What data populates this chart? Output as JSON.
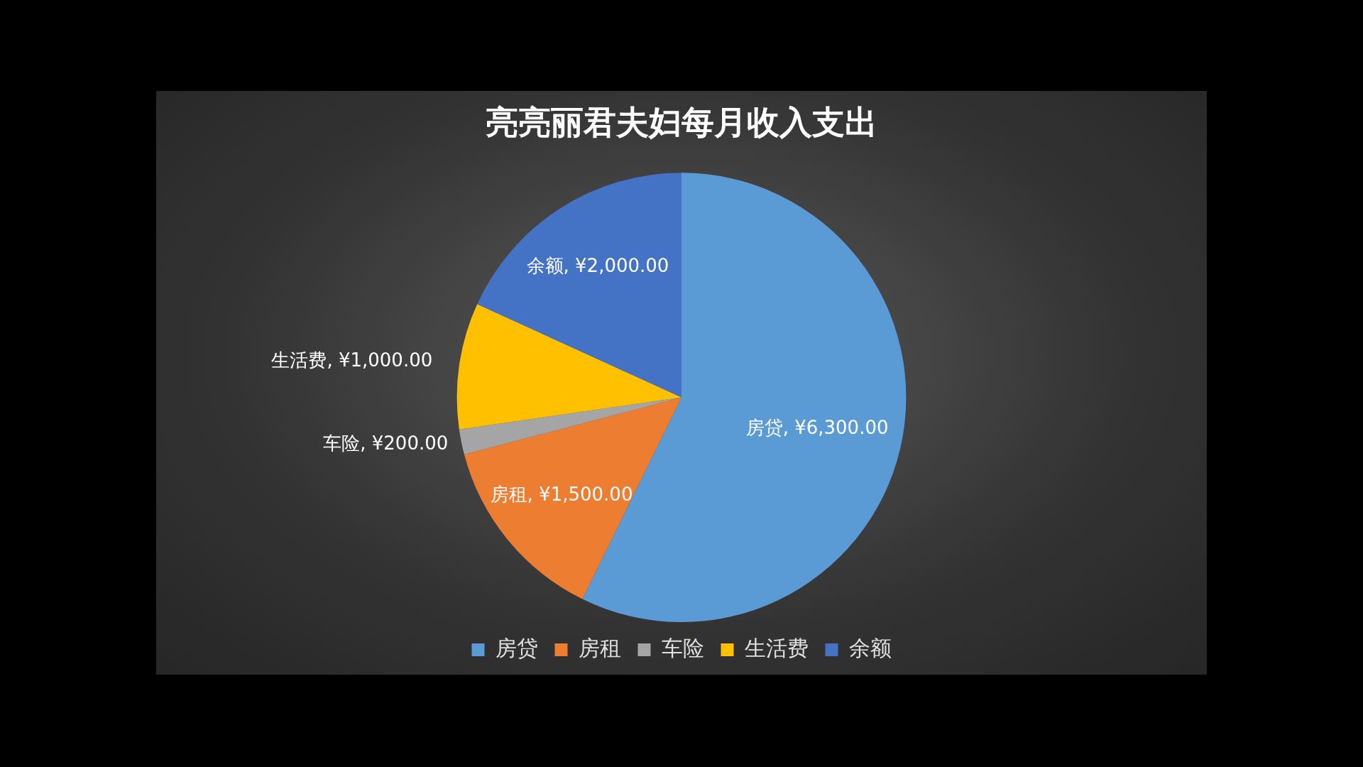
{
  "chart_data": {
    "type": "pie",
    "title": "亮亮丽君夫妇每月收入支出",
    "categories": [
      "房贷",
      "房租",
      "车险",
      "生活费",
      "余额"
    ],
    "values": [
      6300,
      1500,
      200,
      1000,
      2000
    ],
    "colors": [
      "#5b9bd5",
      "#ed7d31",
      "#a5a5a5",
      "#ffc000",
      "#4472c4"
    ],
    "value_labels": [
      "房贷, ¥6,300.00",
      "房租, ¥1,500.00",
      "车险, ¥200.00",
      "生活费, ¥1,000.00",
      "余额, ¥2,000.00"
    ],
    "legend": "bottom"
  }
}
